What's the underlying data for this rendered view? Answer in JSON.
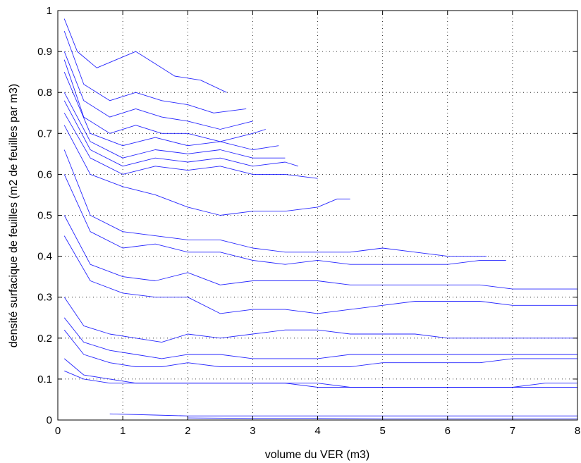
{
  "chart_data": {
    "type": "line",
    "title": "",
    "xlabel": "volume du VER (m3)",
    "ylabel": "densité surfacique de feuilles (m2 de feuilles par m3)",
    "xlim": [
      0,
      8
    ],
    "ylim": [
      0,
      1
    ],
    "x_ticks": [
      "0",
      "1",
      "2",
      "3",
      "4",
      "5",
      "6",
      "7",
      "8"
    ],
    "y_ticks": [
      "0",
      "0.1",
      "0.2",
      "0.3",
      "0.4",
      "0.5",
      "0.6",
      "0.7",
      "0.8",
      "0.9",
      "1"
    ],
    "grid": true,
    "series_color": "#0000ff",
    "series": [
      {
        "x": [
          0.1,
          0.3,
          0.6,
          0.9,
          1.2,
          1.5,
          1.8,
          2.2,
          2.6
        ],
        "y": [
          0.98,
          0.9,
          0.86,
          0.88,
          0.9,
          0.87,
          0.84,
          0.83,
          0.8
        ]
      },
      {
        "x": [
          0.1,
          0.4,
          0.8,
          1.2,
          1.6,
          2.0,
          2.4,
          2.9
        ],
        "y": [
          0.95,
          0.82,
          0.78,
          0.8,
          0.78,
          0.77,
          0.75,
          0.76
        ]
      },
      {
        "x": [
          0.1,
          0.4,
          0.8,
          1.2,
          1.6,
          2.0,
          2.5,
          3.0
        ],
        "y": [
          0.9,
          0.78,
          0.74,
          0.76,
          0.74,
          0.73,
          0.71,
          0.73
        ]
      },
      {
        "x": [
          0.1,
          0.4,
          0.8,
          1.2,
          1.6,
          2.0,
          2.5,
          3.0,
          3.2
        ],
        "y": [
          0.88,
          0.74,
          0.7,
          0.72,
          0.7,
          0.7,
          0.68,
          0.7,
          0.71
        ]
      },
      {
        "x": [
          0.1,
          0.5,
          1.0,
          1.5,
          2.0,
          2.5,
          3.0,
          3.4
        ],
        "y": [
          0.85,
          0.7,
          0.67,
          0.69,
          0.67,
          0.68,
          0.66,
          0.67
        ]
      },
      {
        "x": [
          0.1,
          0.5,
          1.0,
          1.5,
          2.0,
          2.5,
          3.0,
          3.5
        ],
        "y": [
          0.8,
          0.68,
          0.64,
          0.66,
          0.65,
          0.66,
          0.64,
          0.64
        ]
      },
      {
        "x": [
          0.1,
          0.5,
          1.0,
          1.5,
          2.0,
          2.5,
          3.0,
          3.5,
          3.7
        ],
        "y": [
          0.78,
          0.66,
          0.62,
          0.64,
          0.63,
          0.64,
          0.62,
          0.63,
          0.62
        ]
      },
      {
        "x": [
          0.1,
          0.5,
          1.0,
          1.5,
          2.0,
          2.5,
          3.0,
          3.5,
          4.0
        ],
        "y": [
          0.75,
          0.64,
          0.6,
          0.62,
          0.61,
          0.62,
          0.6,
          0.6,
          0.59
        ]
      },
      {
        "x": [
          0.1,
          0.5,
          1.0,
          1.5,
          2.0,
          2.5,
          3.0,
          3.5,
          4.0,
          4.3,
          4.5
        ],
        "y": [
          0.72,
          0.6,
          0.57,
          0.55,
          0.52,
          0.5,
          0.51,
          0.51,
          0.52,
          0.54,
          0.54
        ]
      },
      {
        "x": [
          0.1,
          0.5,
          1.0,
          1.5,
          2.0,
          2.5,
          3.0,
          3.5,
          4.0,
          4.5,
          5.0,
          5.5,
          6.0,
          6.6
        ],
        "y": [
          0.66,
          0.5,
          0.46,
          0.45,
          0.44,
          0.44,
          0.42,
          0.41,
          0.41,
          0.41,
          0.42,
          0.41,
          0.4,
          0.4
        ]
      },
      {
        "x": [
          0.1,
          0.5,
          1.0,
          1.5,
          2.0,
          2.5,
          3.0,
          3.5,
          4.0,
          4.5,
          5.0,
          5.5,
          6.0,
          6.5,
          6.9
        ],
        "y": [
          0.6,
          0.46,
          0.42,
          0.43,
          0.41,
          0.41,
          0.39,
          0.38,
          0.39,
          0.38,
          0.38,
          0.38,
          0.38,
          0.39,
          0.39
        ]
      },
      {
        "x": [
          0.1,
          0.5,
          1.0,
          1.5,
          2.0,
          2.5,
          3.0,
          3.5,
          4.0,
          4.5,
          5.0,
          5.5,
          6.0,
          6.5,
          7.0,
          7.5,
          8.0
        ],
        "y": [
          0.5,
          0.38,
          0.35,
          0.34,
          0.36,
          0.33,
          0.34,
          0.34,
          0.34,
          0.33,
          0.33,
          0.33,
          0.33,
          0.33,
          0.32,
          0.32,
          0.32
        ]
      },
      {
        "x": [
          0.1,
          0.5,
          1.0,
          1.5,
          2.0,
          2.5,
          3.0,
          3.5,
          4.0,
          4.5,
          5.0,
          5.5,
          6.0,
          6.5,
          7.0,
          7.5,
          8.0
        ],
        "y": [
          0.45,
          0.34,
          0.31,
          0.3,
          0.3,
          0.26,
          0.27,
          0.27,
          0.26,
          0.27,
          0.28,
          0.29,
          0.29,
          0.29,
          0.28,
          0.28,
          0.28
        ]
      },
      {
        "x": [
          0.1,
          0.4,
          0.8,
          1.2,
          1.6,
          2.0,
          2.5,
          3.0,
          3.5,
          4.0,
          4.5,
          5.0,
          5.5,
          6.0,
          6.5,
          7.0,
          7.5,
          8.0
        ],
        "y": [
          0.3,
          0.23,
          0.21,
          0.2,
          0.19,
          0.21,
          0.2,
          0.21,
          0.22,
          0.22,
          0.21,
          0.21,
          0.21,
          0.2,
          0.2,
          0.2,
          0.2,
          0.2
        ]
      },
      {
        "x": [
          0.1,
          0.4,
          0.8,
          1.2,
          1.6,
          2.0,
          2.5,
          3.0,
          3.5,
          4.0,
          4.5,
          5.0,
          5.5,
          6.0,
          6.5,
          7.0,
          7.5,
          8.0
        ],
        "y": [
          0.25,
          0.19,
          0.17,
          0.16,
          0.15,
          0.16,
          0.16,
          0.15,
          0.15,
          0.15,
          0.16,
          0.16,
          0.16,
          0.16,
          0.16,
          0.16,
          0.16,
          0.16
        ]
      },
      {
        "x": [
          0.1,
          0.4,
          0.8,
          1.2,
          1.6,
          2.0,
          2.5,
          3.0,
          3.5,
          4.0,
          4.5,
          5.0,
          5.5,
          6.0,
          6.5,
          7.0,
          7.5,
          8.0
        ],
        "y": [
          0.22,
          0.16,
          0.14,
          0.13,
          0.13,
          0.14,
          0.13,
          0.13,
          0.13,
          0.13,
          0.13,
          0.14,
          0.14,
          0.14,
          0.14,
          0.15,
          0.15,
          0.15
        ]
      },
      {
        "x": [
          0.1,
          0.4,
          0.8,
          1.2,
          1.6,
          2.0,
          2.5,
          3.0,
          3.5,
          4.0,
          4.5,
          5.0,
          5.5,
          6.0,
          6.5,
          7.0,
          7.5,
          8.0
        ],
        "y": [
          0.15,
          0.11,
          0.1,
          0.09,
          0.09,
          0.09,
          0.09,
          0.09,
          0.09,
          0.08,
          0.08,
          0.08,
          0.08,
          0.08,
          0.08,
          0.08,
          0.08,
          0.08
        ]
      },
      {
        "x": [
          0.1,
          0.4,
          0.8,
          1.2,
          1.6,
          2.0,
          2.5,
          3.0,
          3.5,
          4.0,
          4.5,
          5.0,
          5.5,
          6.0,
          6.5,
          7.0,
          7.5,
          8.0
        ],
        "y": [
          0.12,
          0.1,
          0.09,
          0.09,
          0.09,
          0.09,
          0.09,
          0.09,
          0.09,
          0.09,
          0.08,
          0.08,
          0.08,
          0.08,
          0.08,
          0.08,
          0.09,
          0.09
        ]
      },
      {
        "x": [
          0.8,
          1.5,
          2.0,
          3.0,
          4.0,
          5.0,
          6.0,
          7.0,
          8.0
        ],
        "y": [
          0.015,
          0.012,
          0.01,
          0.01,
          0.01,
          0.01,
          0.01,
          0.01,
          0.01
        ]
      },
      {
        "x": [
          2.0,
          3.0,
          4.0,
          5.0,
          6.0,
          7.0,
          8.0
        ],
        "y": [
          0.005,
          0.004,
          0.004,
          0.003,
          0.003,
          0.003,
          0.003
        ]
      }
    ]
  }
}
